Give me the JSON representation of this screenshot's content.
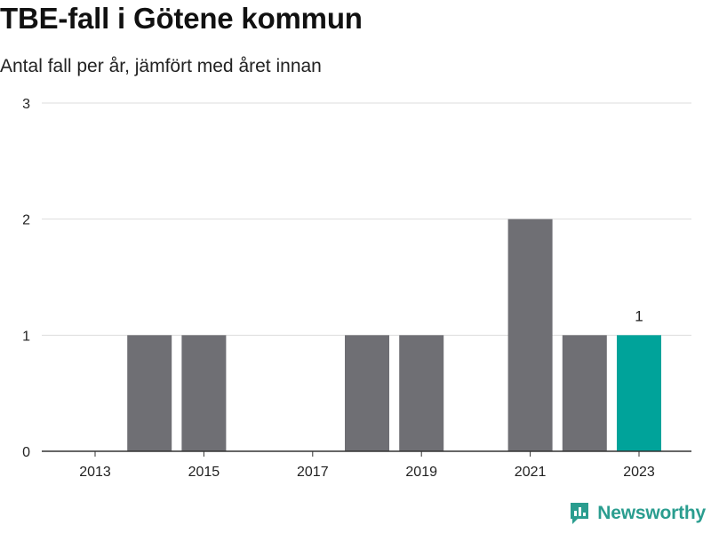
{
  "header": {
    "title": "TBE-fall i Götene kommun",
    "subtitle": "Antal fall per år, jämfört med året innan"
  },
  "brand": {
    "name": "Newsworthy",
    "icon": "newsworthy-logo-icon",
    "color": "#2a9d8f"
  },
  "colors": {
    "bar_default": "#6f6f74",
    "bar_highlight": "#00a39a",
    "grid": "#dddddd",
    "axis": "#333333"
  },
  "chart_data": {
    "type": "bar",
    "categories": [
      "2013",
      "2014",
      "2015",
      "2016",
      "2017",
      "2018",
      "2019",
      "2020",
      "2021",
      "2022",
      "2023"
    ],
    "values": [
      0,
      1,
      1,
      0,
      0,
      1,
      1,
      0,
      2,
      1,
      1
    ],
    "x_tick_labels": [
      "2013",
      "2015",
      "2017",
      "2019",
      "2021",
      "2023"
    ],
    "y_ticks": [
      0,
      1,
      2,
      3
    ],
    "ylim": [
      0,
      3
    ],
    "highlight_category": "2023",
    "data_labels": [
      {
        "category": "2023",
        "text": "1"
      }
    ],
    "grid": true,
    "legend": "none",
    "xlabel": "",
    "ylabel": ""
  }
}
